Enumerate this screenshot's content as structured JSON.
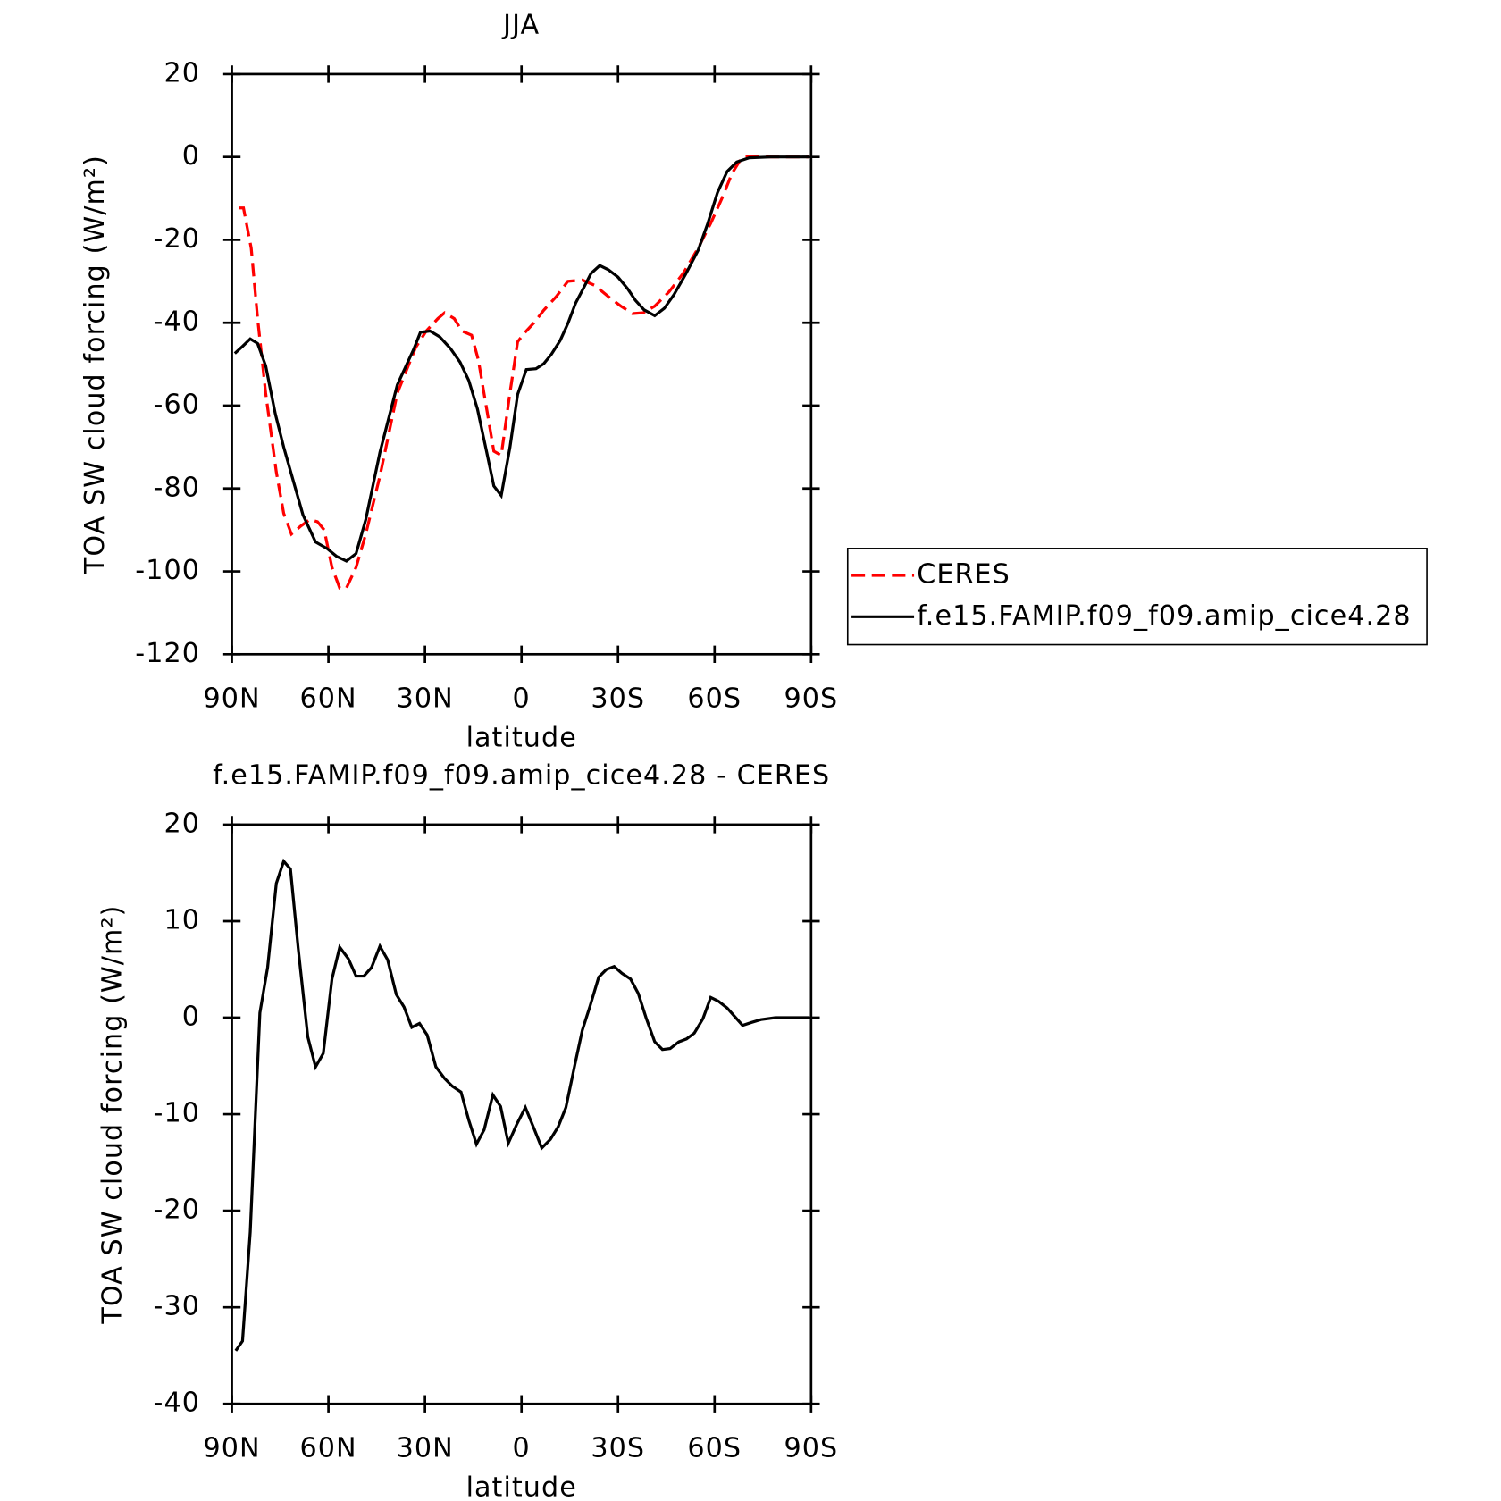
{
  "chart_data": [
    {
      "type": "line",
      "title": "JJA",
      "xlabel": "latitude",
      "ylabel": "TOA SW cloud forcing (W/m²)",
      "xlim": [
        90,
        -90
      ],
      "xticks": [
        {
          "value": 90,
          "label": "90N"
        },
        {
          "value": 60,
          "label": "60N"
        },
        {
          "value": 30,
          "label": "30N"
        },
        0,
        {
          "value": -30,
          "label": "30S"
        },
        {
          "value": -60,
          "label": "60S"
        },
        {
          "value": -90,
          "label": "90S"
        }
      ],
      "ylim": [
        -120,
        20
      ],
      "yticks": [
        -120,
        -100,
        -80,
        -60,
        -40,
        -20,
        0,
        20
      ],
      "legend": "right",
      "series": [
        {
          "name": "CERES",
          "color": "#ff0000",
          "dash": "dashed",
          "x": [
            87.9,
            86.4,
            84,
            82,
            79.5,
            76.2,
            73.9,
            71.5,
            68.5,
            65.8,
            63.4,
            61.3,
            58.9,
            56.5,
            54.4,
            51.4,
            48.4,
            44,
            38.6,
            32.9,
            29.6,
            26,
            23.9,
            20.9,
            18.5,
            15.5,
            13.4,
            11,
            8.6,
            6.3,
            3.6,
            1.2,
            -0.9,
            -3.9,
            -6.9,
            -10.8,
            -14.4,
            -18.9,
            -22.8,
            -27,
            -30.9,
            -34.5,
            -37.8,
            -41.4,
            -45.9,
            -50.4,
            -54.9,
            -58.8,
            -62.4,
            -65.4,
            -68.4,
            -71.4,
            -77.4,
            -89.4
          ],
          "values": [
            -12.3,
            -12.3,
            -22,
            -39,
            -57,
            -76,
            -86,
            -91,
            -89,
            -87.5,
            -88,
            -90,
            -99,
            -104,
            -104,
            -99,
            -91,
            -77,
            -57,
            -46,
            -42,
            -39,
            -37.6,
            -39,
            -42,
            -43,
            -49,
            -60,
            -71,
            -72,
            -57,
            -44.6,
            -42.5,
            -40,
            -37,
            -33.7,
            -30,
            -29.7,
            -31,
            -33.7,
            -36,
            -37.8,
            -37.6,
            -36,
            -32.5,
            -27.9,
            -22,
            -16,
            -9.8,
            -4,
            -0.2,
            0.2,
            0,
            0
          ]
        },
        {
          "name": "f.e15.FAMIP.f09_f09.amip_cice4.28",
          "color": "#000000",
          "dash": "solid",
          "x": [
            89.1,
            86.7,
            84.3,
            82,
            79.5,
            76.5,
            73.9,
            70.9,
            67.9,
            64,
            60.4,
            57.4,
            54.4,
            51.4,
            48.4,
            44,
            38.6,
            33.5,
            31.4,
            28.4,
            25.4,
            22.1,
            19.1,
            16.4,
            13.7,
            10.8,
            8.6,
            6.3,
            3.6,
            1.2,
            -1.5,
            -4.5,
            -6.9,
            -9.3,
            -12,
            -14.4,
            -16.8,
            -19.5,
            -21.6,
            -24.3,
            -27,
            -30,
            -33,
            -35.4,
            -38.1,
            -41.4,
            -44.4,
            -47.4,
            -51,
            -54.9,
            -57.9,
            -60.9,
            -63.9,
            -66.9,
            -70.8,
            -77.4,
            -89.4
          ],
          "values": [
            -47.4,
            -45.7,
            -43.9,
            -45,
            -50.4,
            -62,
            -70,
            -78.2,
            -86.4,
            -92.9,
            -94.5,
            -96.4,
            -97.5,
            -95.7,
            -87.5,
            -71.3,
            -55,
            -46.4,
            -42.3,
            -42,
            -43.4,
            -46.2,
            -49.5,
            -53.9,
            -60.8,
            -71.3,
            -79.4,
            -81.7,
            -70.1,
            -57.3,
            -51.3,
            -51.1,
            -49.9,
            -47.6,
            -44.3,
            -40.2,
            -35.3,
            -31.3,
            -28.1,
            -26.2,
            -27.2,
            -29,
            -31.8,
            -34.6,
            -36.9,
            -38.3,
            -36.5,
            -33.2,
            -28.3,
            -22.5,
            -16,
            -8.6,
            -3.5,
            -1.2,
            -0.2,
            0,
            0
          ]
        }
      ]
    },
    {
      "type": "line",
      "title": "f.e15.FAMIP.f09_f09.amip_cice4.28 - CERES",
      "xlabel": "latitude",
      "ylabel": "TOA SW cloud forcing (W/m²)",
      "xlim": [
        90,
        -90
      ],
      "xticks": [
        {
          "value": 90,
          "label": "90N"
        },
        {
          "value": 60,
          "label": "60N"
        },
        {
          "value": 30,
          "label": "30N"
        },
        0,
        {
          "value": -30,
          "label": "30S"
        },
        {
          "value": -60,
          "label": "60S"
        },
        {
          "value": -90,
          "label": "90S"
        }
      ],
      "ylim": [
        -40,
        20
      ],
      "yticks": [
        -40,
        -30,
        -20,
        -10,
        0,
        10,
        20
      ],
      "series": [
        {
          "color": "#000000",
          "dash": "solid",
          "x": [
            88.8,
            86.7,
            84.3,
            81.3,
            78.9,
            76.2,
            73.9,
            71.8,
            69.4,
            66.4,
            64,
            61.6,
            58.9,
            56.5,
            53.8,
            51.4,
            49,
            46.6,
            44,
            41.6,
            38.9,
            36.5,
            34.1,
            31.7,
            29.3,
            26.6,
            23.9,
            21.5,
            18.8,
            16.4,
            14,
            11.6,
            8.9,
            6.5,
            4.1,
            1.4,
            -1.2,
            -3.9,
            -6.3,
            -9,
            -11.4,
            -13.8,
            -16.5,
            -18.9,
            -21.3,
            -24,
            -26.4,
            -28.8,
            -31.2,
            -33.9,
            -36.3,
            -38.7,
            -41.4,
            -43.8,
            -46.2,
            -48.9,
            -51.3,
            -53.7,
            -56.4,
            -58.8,
            -61.2,
            -63.9,
            -66.3,
            -68.7,
            -71.4,
            -74.4,
            -78.9,
            -89.4
          ],
          "values": [
            -34.5,
            -33.5,
            -22.2,
            0.5,
            5.2,
            13.9,
            16.2,
            15.4,
            7.2,
            -2,
            -5.1,
            -3.7,
            4,
            7.3,
            6.1,
            4.3,
            4.3,
            5.2,
            7.4,
            6,
            2.4,
            1.1,
            -1,
            -0.6,
            -1.8,
            -5.1,
            -6.3,
            -7.1,
            -7.7,
            -10.6,
            -13.1,
            -11.6,
            -8,
            -9.2,
            -13,
            -11,
            -9.3,
            -11.5,
            -13.5,
            -12.6,
            -11.3,
            -9.3,
            -5,
            -1.3,
            1.2,
            4.2,
            5,
            5.3,
            4.6,
            4,
            2.5,
            0,
            -2.5,
            -3.3,
            -3.2,
            -2.5,
            -2.2,
            -1.6,
            -0.1,
            2.1,
            1.7,
            1,
            0.1,
            -0.8,
            -0.5,
            -0.2,
            0,
            0
          ]
        }
      ]
    }
  ]
}
